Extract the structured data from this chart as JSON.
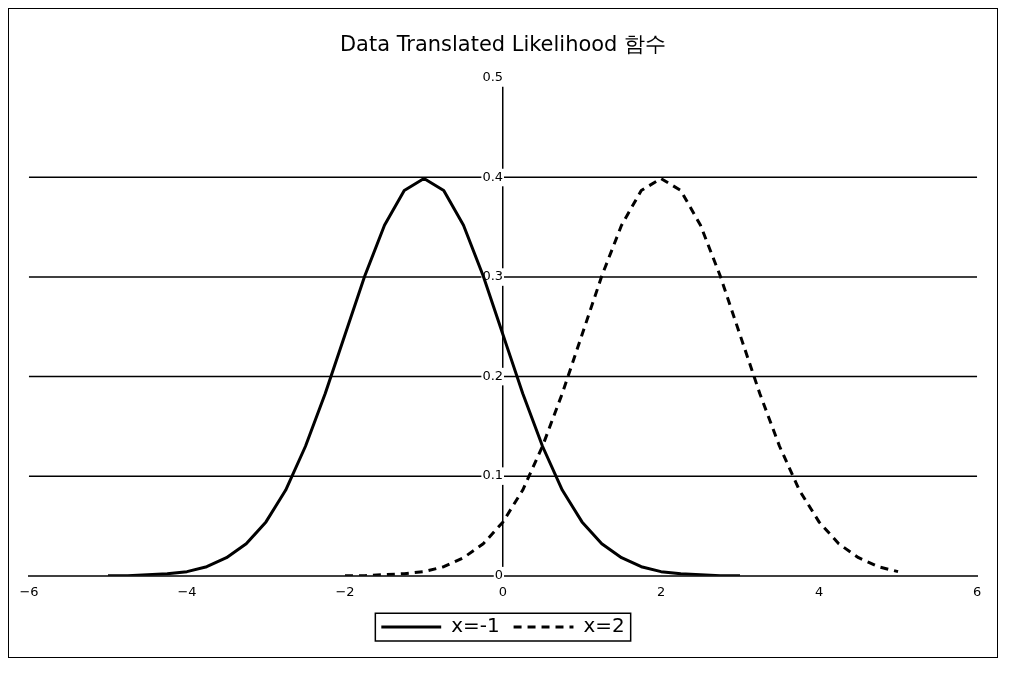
{
  "chart_data": {
    "type": "line",
    "title": "Data Translated Likelihood 함수",
    "xlim": [
      -6,
      6
    ],
    "xticks": [
      -6,
      -4,
      -2,
      0,
      2,
      4,
      6
    ],
    "ylim": [
      0,
      0.5
    ],
    "yticks": [
      0,
      0.1,
      0.2,
      0.3,
      0.4,
      0.5
    ],
    "grid": "y",
    "legend": "bottom",
    "marker": "none",
    "series": [
      {
        "name": "x=-1",
        "color": "#000000",
        "line_style": "solid",
        "x": [
          -5,
          -4.75,
          -4.5,
          -4.25,
          -4,
          -3.75,
          -3.5,
          -3.25,
          -3,
          -2.75,
          -2.5,
          -2.25,
          -2,
          -1.75,
          -1.5,
          -1.25,
          -1,
          -0.75,
          -0.5,
          -0.25,
          0,
          0.25,
          0.5,
          0.75,
          1,
          1.25,
          1.5,
          1.75,
          2,
          2.25,
          2.5,
          2.75,
          3
        ],
        "values": [
          0.0,
          0.0,
          0.001,
          0.002,
          0.004,
          0.009,
          0.018,
          0.032,
          0.054,
          0.086,
          0.13,
          0.183,
          0.242,
          0.301,
          0.352,
          0.387,
          0.399,
          0.387,
          0.352,
          0.301,
          0.242,
          0.183,
          0.13,
          0.086,
          0.054,
          0.032,
          0.018,
          0.009,
          0.004,
          0.002,
          0.001,
          0.0,
          0.0
        ]
      },
      {
        "name": "x=2",
        "color": "#000000",
        "line_style": "dashed",
        "x": [
          -2,
          -1.75,
          -1.5,
          -1.25,
          -1,
          -0.75,
          -0.5,
          -0.25,
          0,
          0.25,
          0.5,
          0.75,
          1,
          1.25,
          1.5,
          1.75,
          2,
          2.25,
          2.5,
          2.75,
          3,
          3.25,
          3.5,
          3.75,
          4,
          4.25,
          4.5,
          4.75,
          5
        ],
        "values": [
          0.0,
          0.0,
          0.001,
          0.002,
          0.004,
          0.009,
          0.018,
          0.032,
          0.054,
          0.086,
          0.13,
          0.183,
          0.242,
          0.301,
          0.352,
          0.387,
          0.399,
          0.387,
          0.352,
          0.301,
          0.242,
          0.183,
          0.13,
          0.086,
          0.054,
          0.032,
          0.018,
          0.009,
          0.004
        ]
      }
    ]
  }
}
